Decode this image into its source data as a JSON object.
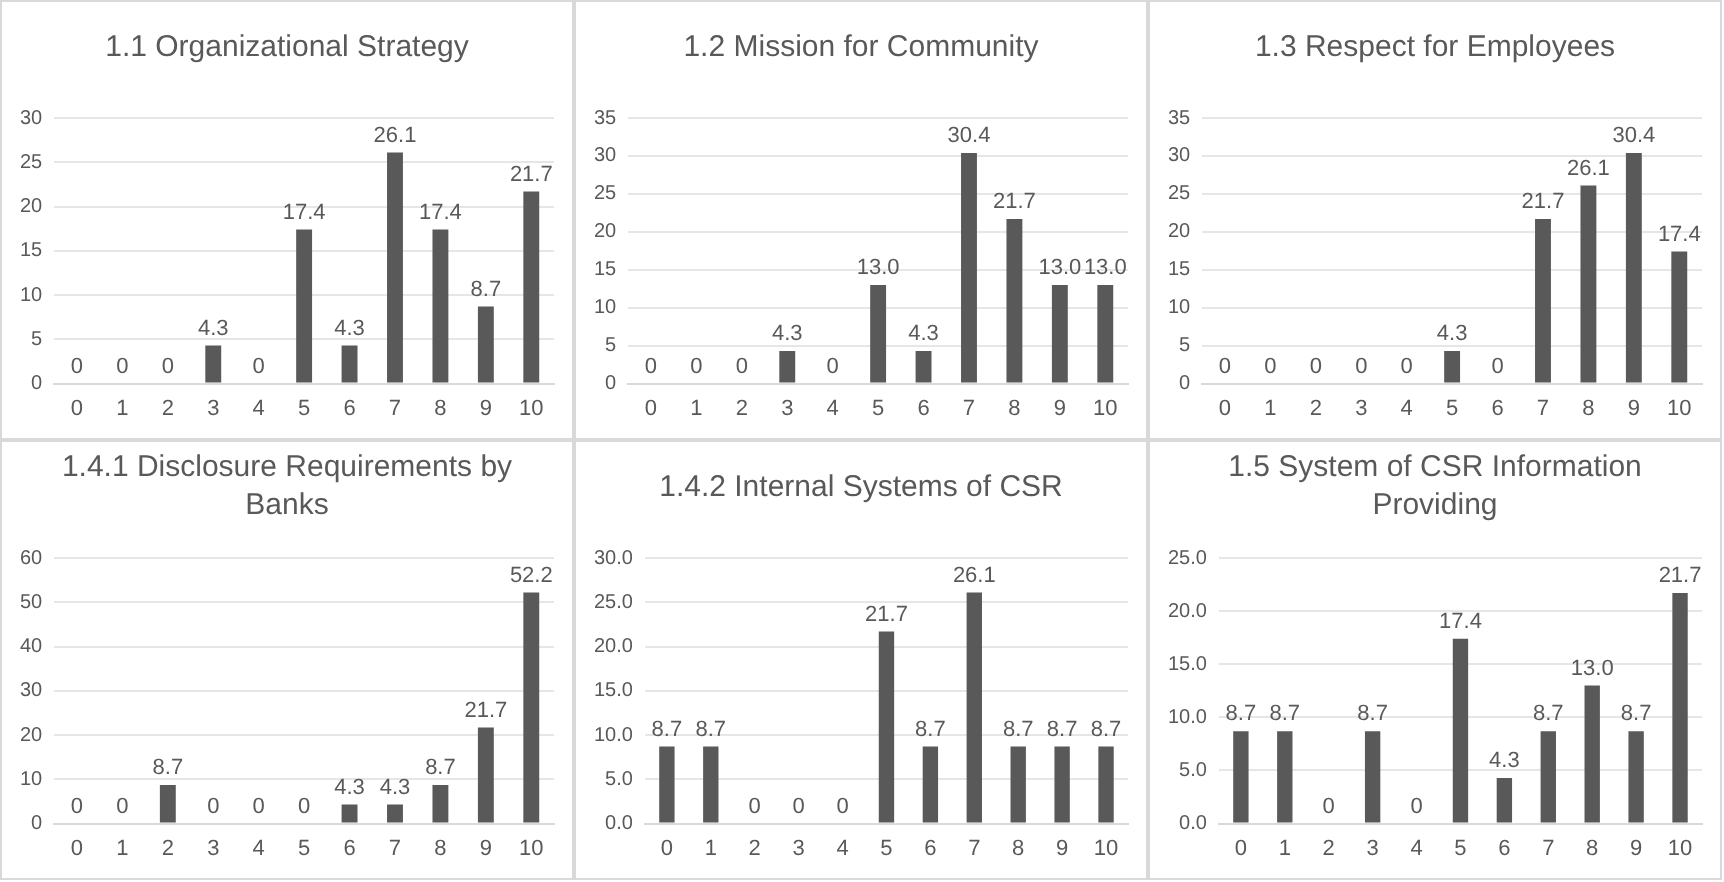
{
  "chart_data": [
    {
      "type": "bar",
      "title": "1.1   Organizational Strategy",
      "categories": [
        "0",
        "1",
        "2",
        "3",
        "4",
        "5",
        "6",
        "7",
        "8",
        "9",
        "10"
      ],
      "values": [
        0,
        0,
        0,
        4.3,
        0,
        17.4,
        4.3,
        26.1,
        17.4,
        8.7,
        21.7
      ],
      "value_labels": [
        "0",
        "0",
        "0",
        "4.3",
        "0",
        "17.4",
        "4.3",
        "26.1",
        "17.4",
        "8.7",
        "21.7"
      ],
      "color": "#595959",
      "ylim": [
        0,
        30
      ],
      "yticks": [
        0,
        5,
        10,
        15,
        20,
        25,
        30
      ],
      "grid": "y",
      "legend": false
    },
    {
      "type": "bar",
      "title": "1.2   Mission for Community",
      "categories": [
        "0",
        "1",
        "2",
        "3",
        "4",
        "5",
        "6",
        "7",
        "8",
        "9",
        "10"
      ],
      "values": [
        0,
        0,
        0,
        4.3,
        0,
        13.0,
        4.3,
        30.4,
        21.7,
        13.0,
        13.0
      ],
      "value_labels": [
        "0",
        "0",
        "0",
        "4.3",
        "0",
        "13.0",
        "4.3",
        "30.4",
        "21.7",
        "13.0",
        "13.0"
      ],
      "color": "#595959",
      "ylim": [
        0,
        35
      ],
      "yticks": [
        0,
        5,
        10,
        15,
        20,
        25,
        30,
        35
      ],
      "grid": "y",
      "legend": false
    },
    {
      "type": "bar",
      "title": "1.3 Respect for Employees",
      "categories": [
        "0",
        "1",
        "2",
        "3",
        "4",
        "5",
        "6",
        "7",
        "8",
        "9",
        "10"
      ],
      "values": [
        0,
        0,
        0,
        0,
        0,
        4.3,
        0,
        21.7,
        26.1,
        30.4,
        17.4
      ],
      "value_labels": [
        "0",
        "0",
        "0",
        "0",
        "0",
        "4.3",
        "0",
        "21.7",
        "26.1",
        "30.4",
        "17.4"
      ],
      "color": "#595959",
      "ylim": [
        0,
        35
      ],
      "yticks": [
        0,
        5,
        10,
        15,
        20,
        25,
        30,
        35
      ],
      "grid": "y",
      "legend": false
    },
    {
      "type": "bar",
      "title": "1.4.1 Disclosure Requirements by Banks",
      "categories": [
        "0",
        "1",
        "2",
        "3",
        "4",
        "5",
        "6",
        "7",
        "8",
        "9",
        "10"
      ],
      "values": [
        0,
        0,
        8.7,
        0,
        0,
        0,
        4.3,
        4.3,
        8.7,
        21.7,
        52.2
      ],
      "value_labels": [
        "0",
        "0",
        "8.7",
        "0",
        "0",
        "0",
        "4.3",
        "4.3",
        "8.7",
        "21.7",
        "52.2"
      ],
      "color": "#595959",
      "ylim": [
        0,
        60
      ],
      "yticks": [
        0,
        10,
        20,
        30,
        40,
        50,
        60
      ],
      "grid": "y",
      "legend": false
    },
    {
      "type": "bar",
      "title": "1.4.2    Internal Systems of CSR",
      "categories": [
        "0",
        "1",
        "2",
        "3",
        "4",
        "5",
        "6",
        "7",
        "8",
        "9",
        "10"
      ],
      "values": [
        8.7,
        8.7,
        0,
        0,
        0,
        21.7,
        8.7,
        26.1,
        8.7,
        8.7,
        8.7
      ],
      "value_labels": [
        "8.7",
        "8.7",
        "0",
        "0",
        "0",
        "21.7",
        "8.7",
        "26.1",
        "8.7",
        "8.7",
        "8.7"
      ],
      "color": "#595959",
      "ylim": [
        0,
        30
      ],
      "yticks": [
        {
          "value": 0,
          "label": "0.0"
        },
        {
          "value": 5,
          "label": "5.0"
        },
        {
          "value": 10,
          "label": "10.0"
        },
        {
          "value": 15,
          "label": "15.0"
        },
        {
          "value": 20,
          "label": "20.0"
        },
        {
          "value": 25,
          "label": "25.0"
        },
        {
          "value": 30,
          "label": "30.0"
        }
      ],
      "grid": "y",
      "legend": false
    },
    {
      "type": "bar",
      "title": "1.5 System of CSR Information Providing",
      "categories": [
        "0",
        "1",
        "2",
        "3",
        "4",
        "5",
        "6",
        "7",
        "8",
        "9",
        "10"
      ],
      "values": [
        8.7,
        8.7,
        0,
        8.7,
        0,
        17.4,
        4.3,
        8.7,
        13.0,
        8.7,
        21.7
      ],
      "value_labels": [
        "8.7",
        "8.7",
        "0",
        "8.7",
        "0",
        "17.4",
        "4.3",
        "8.7",
        "13.0",
        "8.7",
        "21.7"
      ],
      "color": "#595959",
      "ylim": [
        0,
        25
      ],
      "yticks": [
        {
          "value": 0,
          "label": "0.0"
        },
        {
          "value": 5,
          "label": "5.0"
        },
        {
          "value": 10,
          "label": "10.0"
        },
        {
          "value": 15,
          "label": "15.0"
        },
        {
          "value": 20,
          "label": "20.0"
        },
        {
          "value": 25,
          "label": "25.0"
        }
      ],
      "grid": "y",
      "legend": false
    }
  ]
}
